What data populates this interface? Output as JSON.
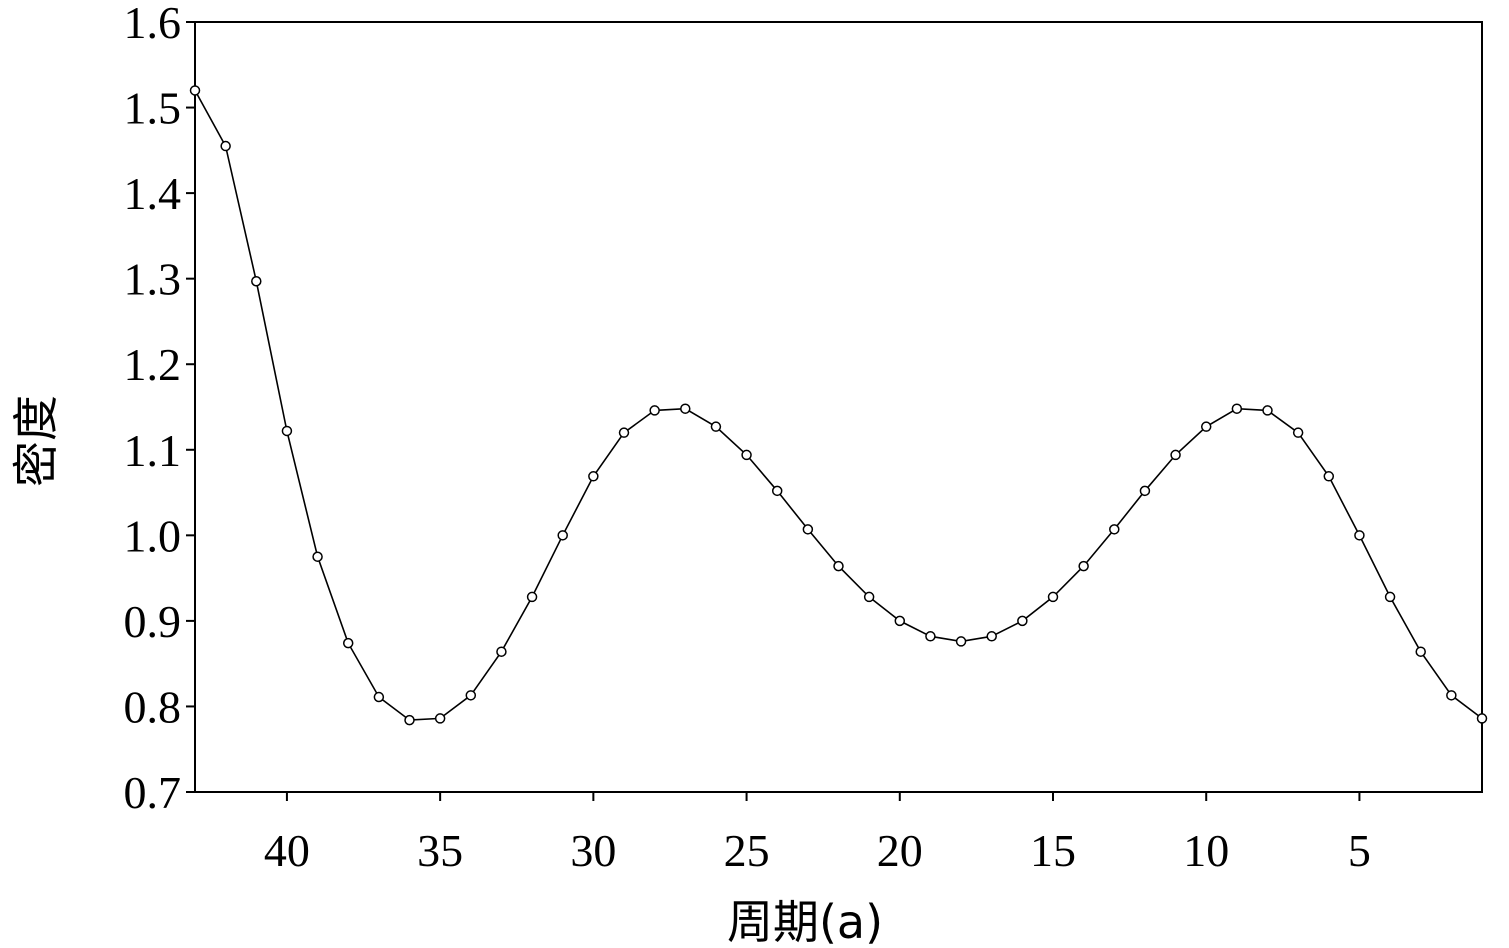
{
  "chart_data": {
    "type": "line",
    "title": "",
    "xlabel": "周期(a)",
    "ylabel": "密度",
    "xlim": [
      43,
      1
    ],
    "ylim": [
      0.7,
      1.6
    ],
    "x_reversed": true,
    "grid": false,
    "x_ticks": [
      40,
      35,
      30,
      25,
      20,
      15,
      10,
      5
    ],
    "y_ticks": [
      "0.7",
      "0.8",
      "0.9",
      "1.0",
      "1.1",
      "1.2",
      "1.3",
      "1.4",
      "1.5",
      "1.6"
    ],
    "series": [
      {
        "marker": "circle",
        "color": "#000000",
        "x": [
          43,
          42,
          41,
          40,
          39,
          38,
          37,
          36,
          35,
          34,
          33,
          32,
          31,
          30,
          29,
          28,
          27,
          26,
          25,
          24,
          23,
          22,
          21,
          20,
          19,
          18,
          17,
          16,
          15,
          14,
          13,
          12,
          11,
          10,
          9,
          8,
          7,
          6,
          5,
          4,
          3,
          2,
          1
        ],
        "values": [
          1.52,
          1.455,
          1.297,
          1.122,
          0.975,
          0.874,
          0.811,
          0.784,
          0.786,
          0.813,
          0.864,
          0.928,
          1.0,
          1.069,
          1.12,
          1.146,
          1.148,
          1.127,
          1.094,
          1.052,
          1.007,
          0.964,
          0.928,
          0.9,
          0.882,
          0.876,
          0.882,
          0.9,
          0.928,
          0.964,
          1.007,
          1.052,
          1.094,
          1.127,
          1.148,
          1.146,
          1.12,
          1.069,
          1.0,
          0.928,
          0.864,
          0.813,
          0.786
        ]
      }
    ]
  }
}
